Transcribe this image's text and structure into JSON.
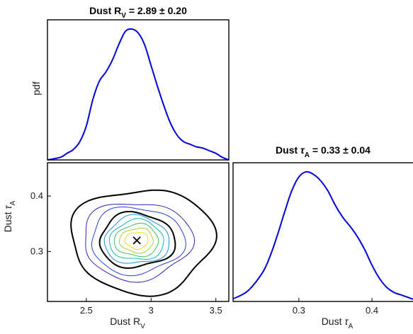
{
  "chart_data": [
    {
      "type": "line",
      "panel": "marginal-rv",
      "title_prefix": "Dust R",
      "title_sub": "V",
      "title_value": " = 2.89 ± 0.20",
      "ylabel": "pdf",
      "xlim": [
        2.2,
        3.6
      ],
      "ylim": [
        0,
        1.07
      ],
      "color": "#0000dd",
      "x": [
        2.2,
        2.3,
        2.35,
        2.4,
        2.45,
        2.5,
        2.55,
        2.6,
        2.65,
        2.7,
        2.75,
        2.8,
        2.85,
        2.9,
        2.95,
        3.0,
        3.05,
        3.1,
        3.15,
        3.2,
        3.25,
        3.3,
        3.35,
        3.4,
        3.45,
        3.5,
        3.55,
        3.6
      ],
      "y": [
        0,
        0.02,
        0.05,
        0.08,
        0.14,
        0.26,
        0.46,
        0.6,
        0.67,
        0.76,
        0.88,
        0.98,
        1.0,
        0.97,
        0.88,
        0.72,
        0.56,
        0.41,
        0.28,
        0.19,
        0.14,
        0.12,
        0.1,
        0.09,
        0.07,
        0.05,
        0.02,
        0
      ]
    },
    {
      "type": "line",
      "panel": "marginal-tau",
      "title_prefix": "Dust ",
      "title_symbol": "τ",
      "title_sub": "A",
      "title_value": " = 0.33 ± 0.04",
      "xlabel_prefix": "Dust ",
      "xlabel_symbol": "τ",
      "xlabel_sub": "A",
      "xlim": [
        0.21,
        0.46
      ],
      "xticks": [
        0.3,
        0.4
      ],
      "xticklabels": [
        "0.3",
        "0.4"
      ],
      "ylim": [
        0,
        1.07
      ],
      "color": "#0000dd",
      "x": [
        0.21,
        0.23,
        0.25,
        0.26,
        0.27,
        0.28,
        0.29,
        0.3,
        0.31,
        0.32,
        0.33,
        0.34,
        0.35,
        0.36,
        0.37,
        0.38,
        0.39,
        0.4,
        0.41,
        0.42,
        0.43,
        0.44,
        0.45,
        0.46
      ],
      "y": [
        0.02,
        0.08,
        0.22,
        0.34,
        0.5,
        0.68,
        0.85,
        0.96,
        1.0,
        0.98,
        0.93,
        0.85,
        0.74,
        0.65,
        0.58,
        0.5,
        0.4,
        0.28,
        0.18,
        0.11,
        0.07,
        0.05,
        0.03,
        0.01
      ]
    },
    {
      "type": "contour",
      "panel": "joint",
      "xlabel_prefix": "Dust R",
      "xlabel_sub": "V",
      "ylabel_prefix": "Dust ",
      "ylabel_symbol": "τ",
      "ylabel_sub": "A",
      "xlim": [
        2.2,
        3.6
      ],
      "ylim": [
        0.21,
        0.46
      ],
      "xticks": [
        2.5,
        3,
        3.5
      ],
      "xticklabels": [
        "2.5",
        "3",
        "3.5"
      ],
      "yticks": [
        0.3,
        0.4
      ],
      "yticklabels": [
        "0.3",
        "0.4"
      ],
      "center": [
        2.89,
        0.32
      ],
      "best_fit_marker": "×",
      "contours": [
        {
          "sx": 0.55,
          "sy": 0.094,
          "dx": 0.04,
          "dy": 0.0,
          "color": "#000000",
          "width": 2.0
        },
        {
          "sx": 0.42,
          "sy": 0.07,
          "dx": 0.0,
          "dy": 0.0,
          "color": "#3a1fb0",
          "width": 1.0
        },
        {
          "sx": 0.36,
          "sy": 0.06,
          "dx": 0.0,
          "dy": 0.0,
          "color": "#2442d8",
          "width": 1.0
        },
        {
          "sx": 0.29,
          "sy": 0.049,
          "dx": 0.0,
          "dy": 0.0,
          "color": "#000000",
          "width": 2.0
        },
        {
          "sx": 0.25,
          "sy": 0.043,
          "dx": 0.0,
          "dy": 0.0,
          "color": "#1f8fd8",
          "width": 1.0
        },
        {
          "sx": 0.21,
          "sy": 0.036,
          "dx": 0.0,
          "dy": 0.0,
          "color": "#15b6b0",
          "width": 1.0
        },
        {
          "sx": 0.17,
          "sy": 0.029,
          "dx": 0.0,
          "dy": 0.0,
          "color": "#3cc060",
          "width": 1.0
        },
        {
          "sx": 0.13,
          "sy": 0.022,
          "dx": 0.0,
          "dy": 0.0,
          "color": "#a8d030",
          "width": 1.0
        },
        {
          "sx": 0.09,
          "sy": 0.015,
          "dx": 0.0,
          "dy": 0.0,
          "color": "#f0dc20",
          "width": 1.0
        }
      ]
    }
  ]
}
